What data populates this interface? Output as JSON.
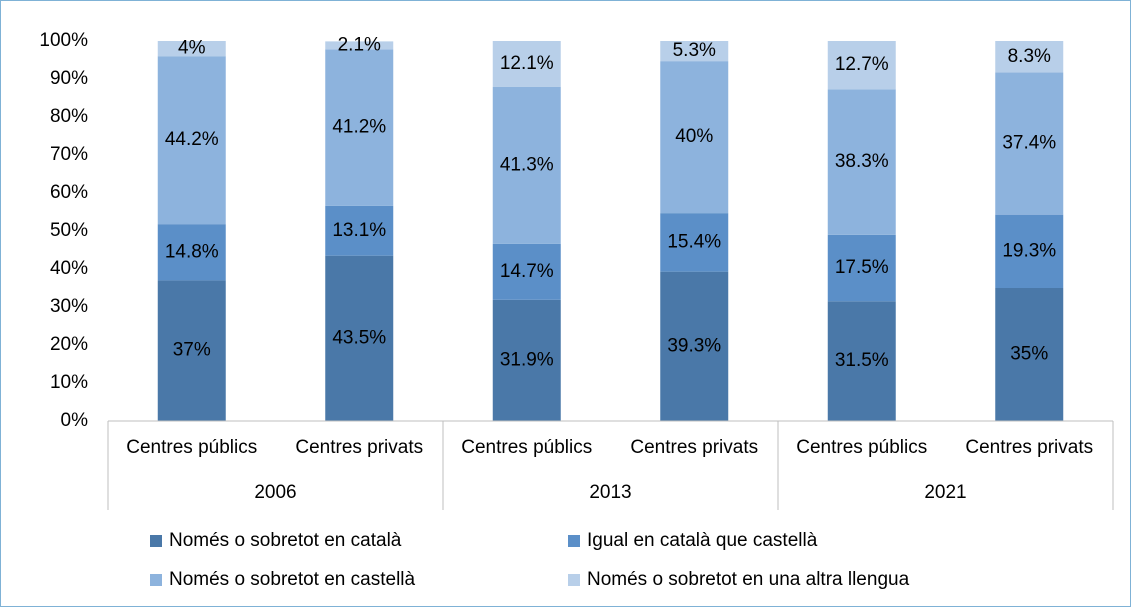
{
  "chart_data": {
    "type": "stacked_bar",
    "categories": [
      "Centres públics",
      "Centres privats",
      "Centres públics",
      "Centres privats",
      "Centres públics",
      "Centres privats"
    ],
    "groups": [
      "2006",
      "2013",
      "2021"
    ],
    "series": [
      {
        "name": "Només o sobretot en català",
        "color": "#4a78a8",
        "values": [
          37,
          43.5,
          31.9,
          39.3,
          31.5,
          35
        ],
        "value_labels": [
          "37%",
          "43.5%",
          "31.9%",
          "39.3%",
          "31.5%",
          "35%"
        ]
      },
      {
        "name": "Igual en català que castellà",
        "color": "#5b8fc8",
        "values": [
          14.8,
          13.1,
          14.7,
          15.4,
          17.5,
          19.3
        ],
        "value_labels": [
          "14.8%",
          "13.1%",
          "14.7%",
          "15.4%",
          "17.5%",
          "19.3%"
        ]
      },
      {
        "name": "Només o sobretot en castellà",
        "color": "#8db3dd",
        "values": [
          44.2,
          41.2,
          41.3,
          40,
          38.3,
          37.4
        ],
        "value_labels": [
          "44.2%",
          "41.2%",
          "41.3%",
          "40%",
          "38.3%",
          "37.4%"
        ]
      },
      {
        "name": "Només o sobretot en una altra llengua",
        "color": "#b8cfe9",
        "values": [
          4,
          2.1,
          12.1,
          5.3,
          12.7,
          8.3
        ],
        "value_labels": [
          "4%",
          "2.1%",
          "12.1%",
          "5.3%",
          "12.7%",
          "8.3%"
        ]
      }
    ],
    "ylim": [
      0,
      100
    ],
    "yticks": [
      {
        "value": 0,
        "label": "0%"
      },
      {
        "value": 10,
        "label": "10%"
      },
      {
        "value": 20,
        "label": "20%"
      },
      {
        "value": 30,
        "label": "30%"
      },
      {
        "value": 40,
        "label": "40%"
      },
      {
        "value": 50,
        "label": "50%"
      },
      {
        "value": 60,
        "label": "60%"
      },
      {
        "value": 70,
        "label": "70%"
      },
      {
        "value": 80,
        "label": "80%"
      },
      {
        "value": 90,
        "label": "90%"
      },
      {
        "value": 100,
        "label": "100%"
      }
    ],
    "grid": false,
    "legend": "bottom"
  }
}
